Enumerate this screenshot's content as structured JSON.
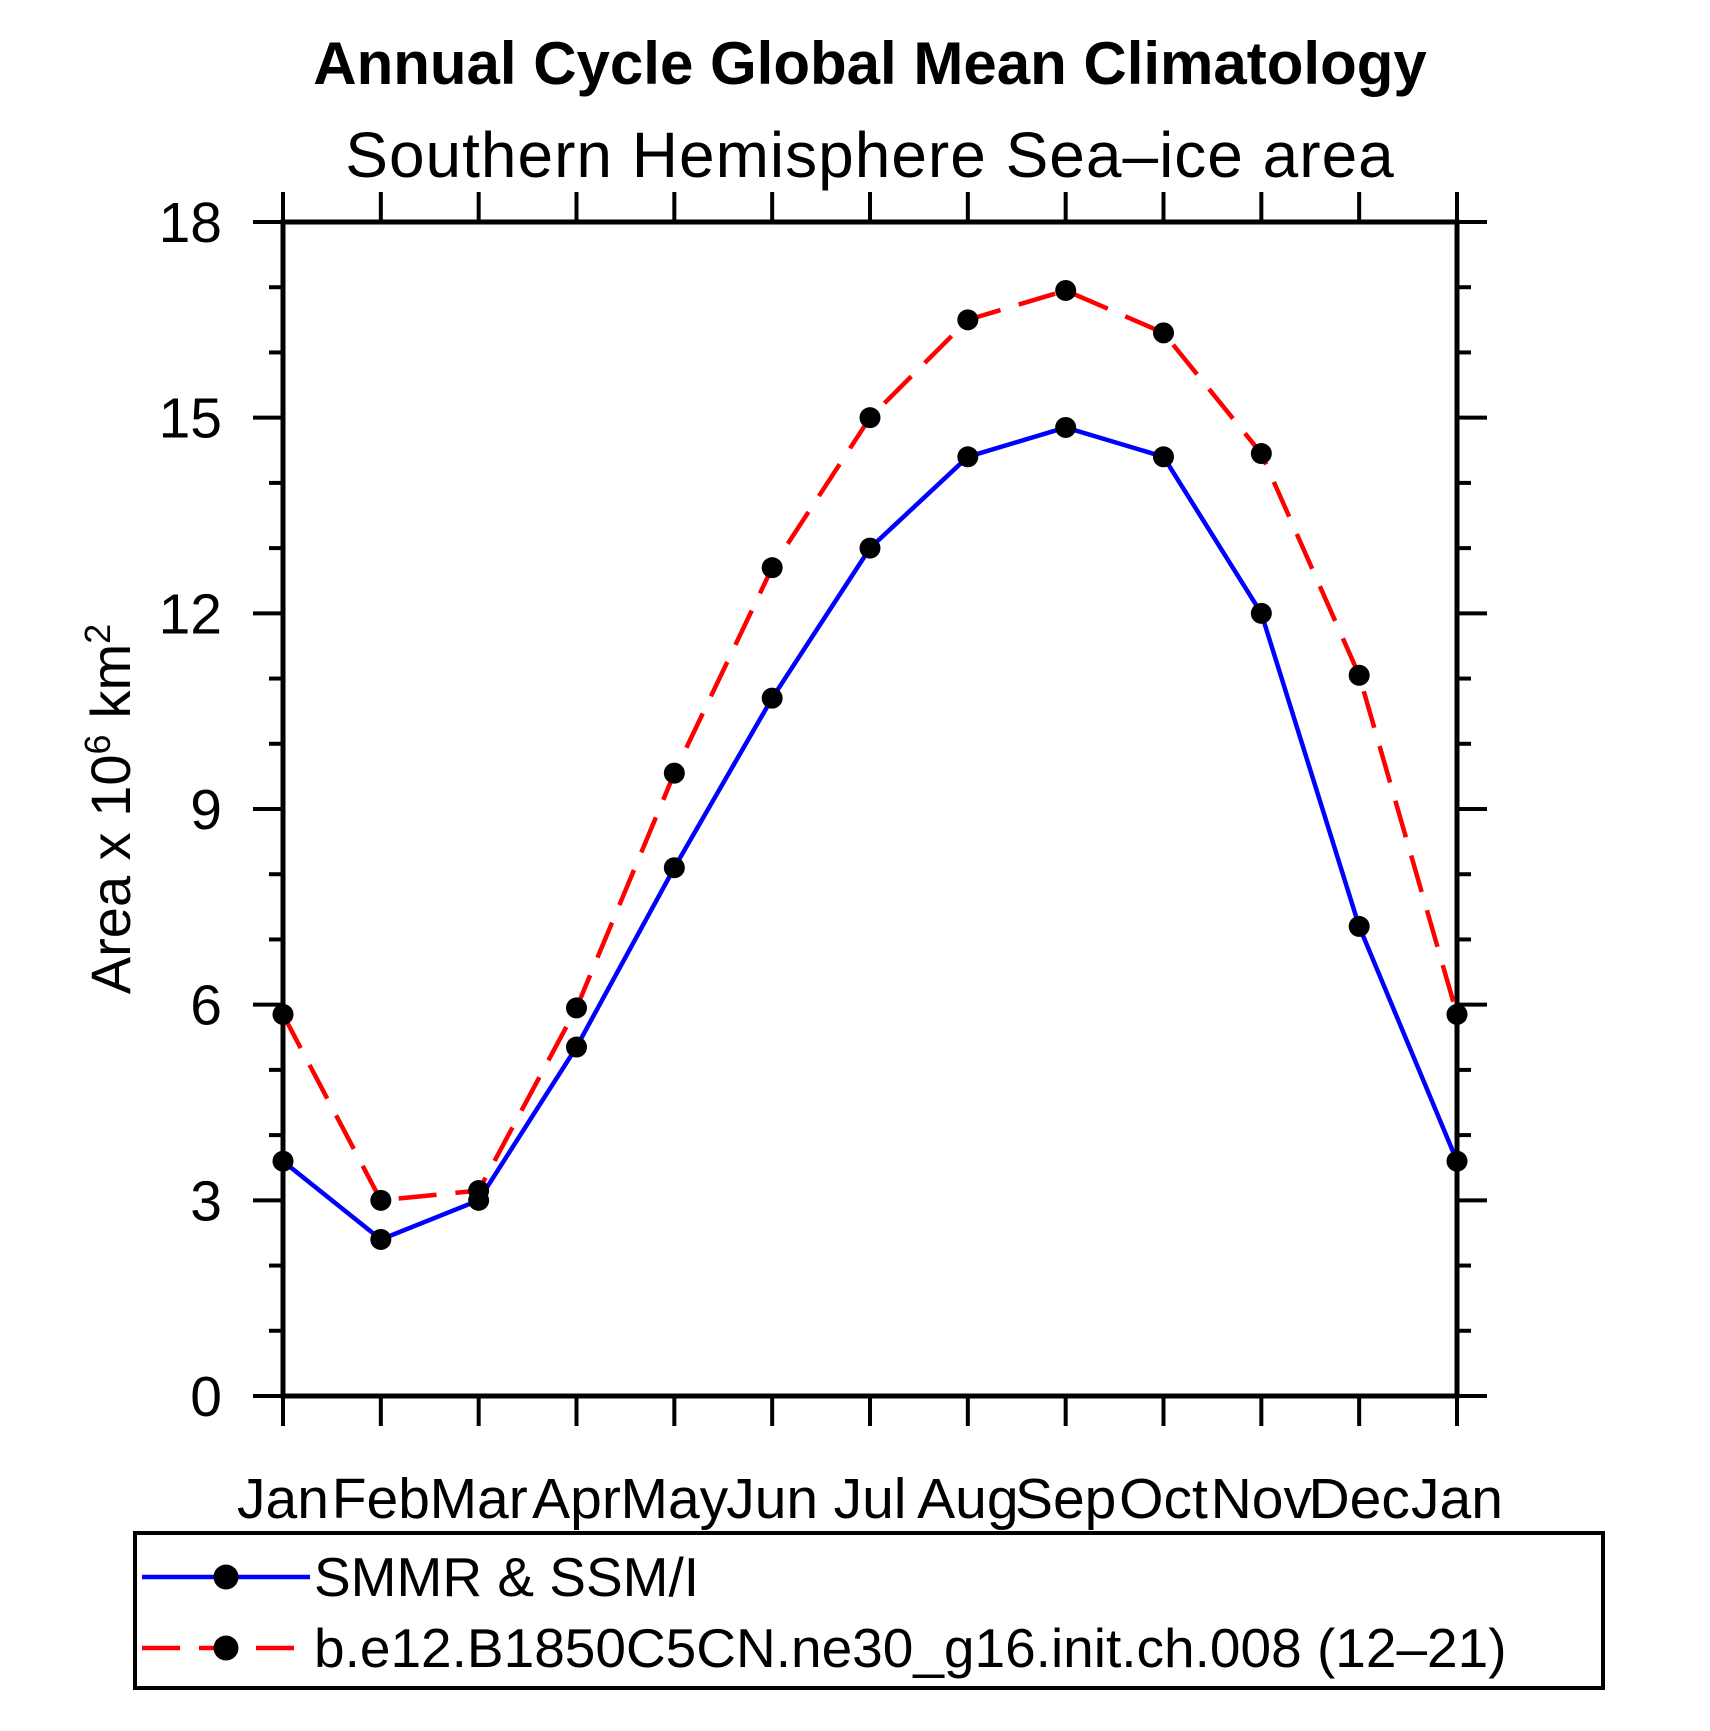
{
  "chart_data": {
    "type": "line",
    "title": "Annual Cycle Global Mean Climatology",
    "subtitle": "Southern Hemisphere Sea–ice area",
    "ylabel": "Area x 10⁶ km²",
    "ylabel_parts": {
      "prefix": "Area x 10",
      "sup1": "6",
      "mid": "km",
      "sup2": "2"
    },
    "x_categories": [
      "Jan",
      "Feb",
      "Mar",
      "Apr",
      "May",
      "Jun",
      "Jul",
      "Aug",
      "Sep",
      "Oct",
      "Nov",
      "Dec",
      "Jan"
    ],
    "ylim": [
      0,
      18
    ],
    "ytick_major": [
      0,
      3,
      6,
      9,
      12,
      15,
      18
    ],
    "ytick_labels": [
      "0",
      "3",
      "6",
      "9",
      "12",
      "15",
      "18"
    ],
    "ytick_minor_step": 1,
    "grid": false,
    "legend_position": "bottom",
    "background_color": "#ffffff",
    "axis_color": "#000000",
    "marker_color": "#000000",
    "series": [
      {
        "name": "SMMR & SSM/I",
        "color": "#0000ff",
        "line_style": "solid",
        "marker": "filled-circle",
        "values": [
          3.6,
          2.4,
          3.0,
          5.35,
          8.1,
          10.7,
          13.0,
          14.4,
          14.85,
          14.4,
          12.0,
          7.2,
          3.6
        ]
      },
      {
        "name": "b.e12.B1850C5CN.ne30_g16.init.ch.008 (12–21)",
        "color": "#ff0000",
        "line_style": "dashed",
        "marker": "filled-circle",
        "values": [
          5.85,
          3.0,
          3.15,
          5.95,
          9.55,
          12.7,
          15.0,
          16.5,
          16.95,
          16.3,
          14.45,
          11.05,
          5.85
        ]
      }
    ]
  }
}
